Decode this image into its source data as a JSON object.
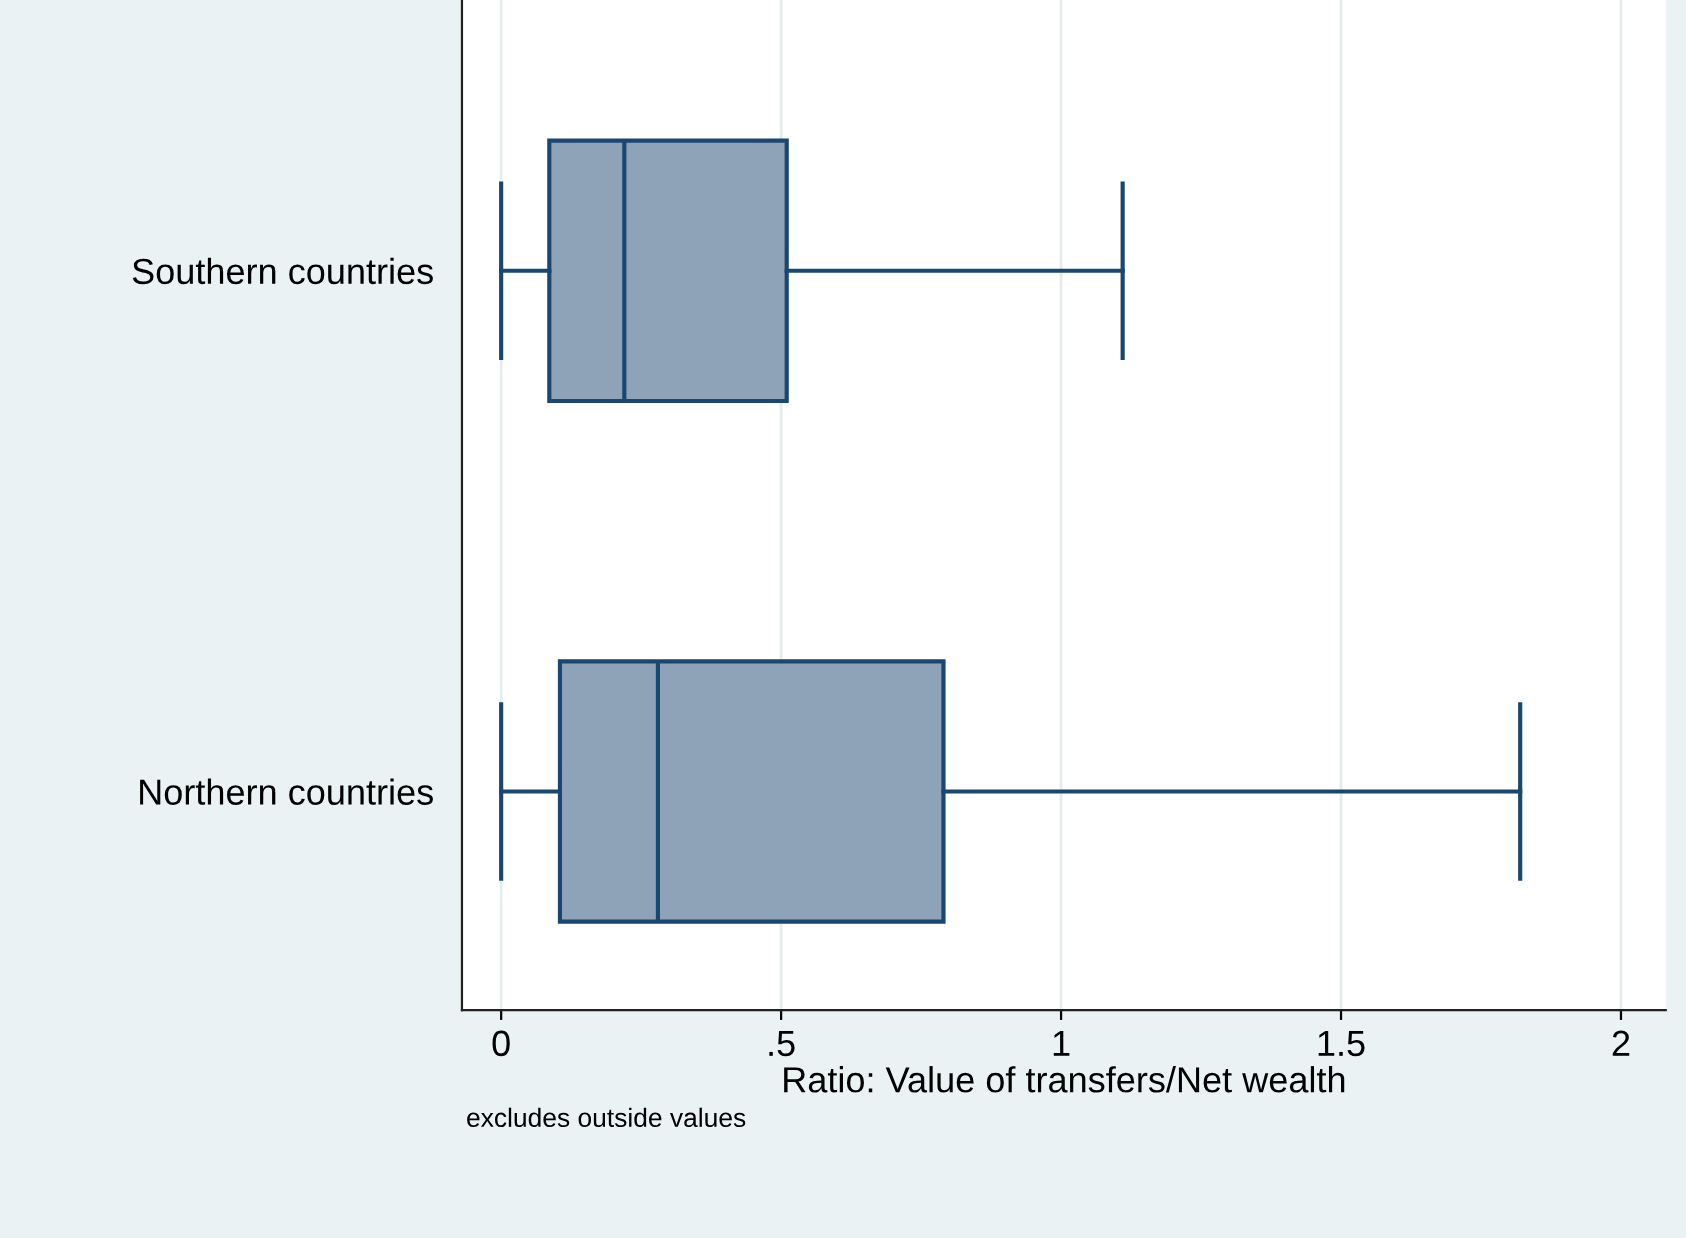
{
  "chart_data": {
    "type": "box",
    "orientation": "horizontal",
    "categories": [
      "Southern countries",
      "Northern countries"
    ],
    "boxes": [
      {
        "low": 0,
        "q1": 0.086,
        "median": 0.22,
        "q3": 0.51,
        "high": 1.11
      },
      {
        "low": 0,
        "q1": 0.105,
        "median": 0.28,
        "q3": 0.79,
        "high": 1.82
      }
    ],
    "color": "#8ea3b8",
    "xlabel": "Ratio: Value of transfers/Net wealth",
    "xlim": [
      -0.07,
      2.08
    ],
    "xticks": [
      0,
      {
        "value": 0.5,
        "label": ".5"
      },
      1,
      1.5,
      2
    ],
    "grid": "x",
    "annotations": [
      "excludes outside values"
    ]
  }
}
